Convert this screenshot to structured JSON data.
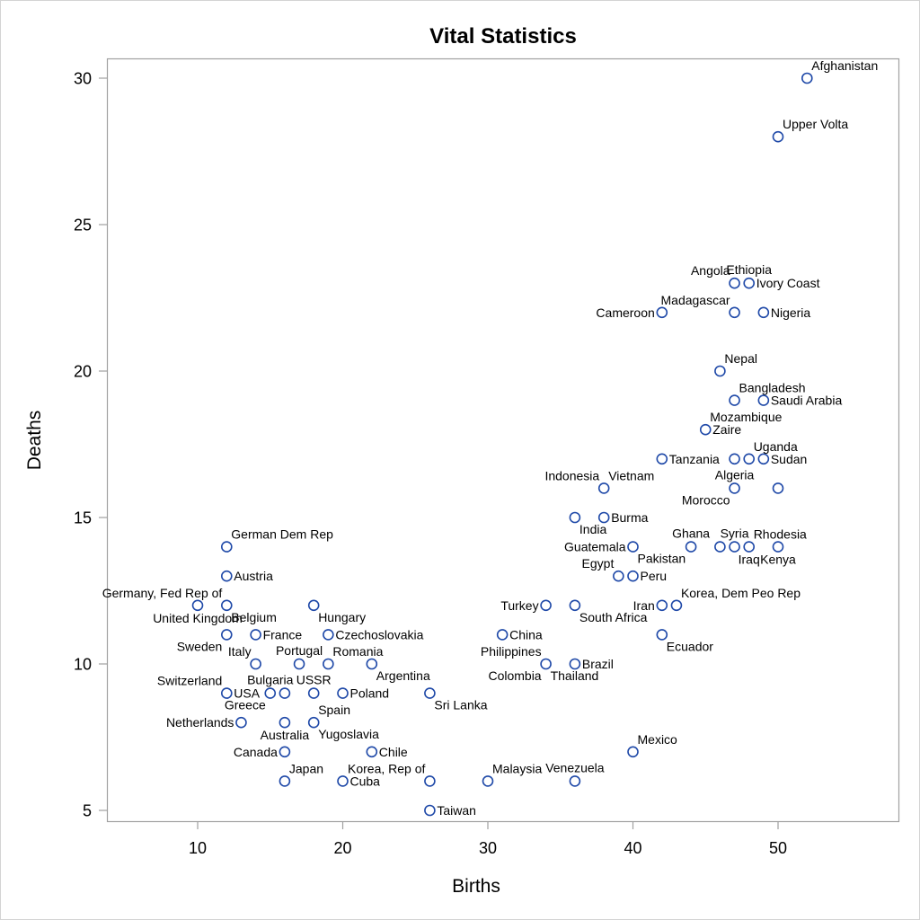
{
  "chart_data": {
    "type": "scatter",
    "title": "Vital Statistics",
    "xlabel": "Births",
    "ylabel": "Deaths",
    "xlim": [
      4.5,
      57
    ],
    "ylim": [
      4.6,
      31.6
    ],
    "xticks": [
      10,
      20,
      30,
      40,
      50
    ],
    "yticks": [
      5,
      10,
      15,
      20,
      25,
      30
    ],
    "grid": false,
    "legend": null,
    "marker": {
      "shape": "circle-open",
      "color": "#1f49a8"
    },
    "points": [
      {
        "label": "Afghanistan",
        "x": 52,
        "y": 30,
        "pos": "ne"
      },
      {
        "label": "Upper Volta",
        "x": 50,
        "y": 28,
        "pos": "ne"
      },
      {
        "label": "Angola",
        "x": 47,
        "y": 23,
        "pos": "nw"
      },
      {
        "label": "Ethiopia",
        "x": 48,
        "y": 23,
        "pos": "n"
      },
      {
        "label": "Ivory Coast",
        "x": 48,
        "y": 23,
        "pos": "e"
      },
      {
        "label": "Cameroon",
        "x": 42,
        "y": 22,
        "pos": "w"
      },
      {
        "label": "Madagascar",
        "x": 47,
        "y": 22,
        "pos": "nw"
      },
      {
        "label": "Nigeria",
        "x": 49,
        "y": 22,
        "pos": "e"
      },
      {
        "label": "Nepal",
        "x": 46,
        "y": 20,
        "pos": "ne"
      },
      {
        "label": "Bangladesh",
        "x": 47,
        "y": 19,
        "pos": "ne"
      },
      {
        "label": "Saudi Arabia",
        "x": 49,
        "y": 19,
        "pos": "e"
      },
      {
        "label": "Mozambique",
        "x": 45,
        "y": 18,
        "pos": "ne"
      },
      {
        "label": "Zaire",
        "x": 45,
        "y": 18,
        "pos": "e"
      },
      {
        "label": "Tanzania",
        "x": 42,
        "y": 17,
        "pos": "e"
      },
      {
        "label": "Uganda",
        "x": 48,
        "y": 17,
        "pos": "ne"
      },
      {
        "label": "Sudan",
        "x": 49,
        "y": 17,
        "pos": "e"
      },
      {
        "label": "",
        "x": 47,
        "y": 17,
        "pos": "none"
      },
      {
        "label": "Indonesia",
        "x": 38,
        "y": 16,
        "pos": "nw"
      },
      {
        "label": "Vietnam",
        "x": 38,
        "y": 16,
        "pos": "ne"
      },
      {
        "label": "Algeria",
        "x": 47,
        "y": 16,
        "pos": "n"
      },
      {
        "label": "Morocco",
        "x": 47,
        "y": 16,
        "pos": "sw"
      },
      {
        "label": "",
        "x": 50,
        "y": 16,
        "pos": "none"
      },
      {
        "label": "India",
        "x": 36,
        "y": 15,
        "pos": "se"
      },
      {
        "label": "Burma",
        "x": 38,
        "y": 15,
        "pos": "e"
      },
      {
        "label": "Guatemala",
        "x": 40,
        "y": 14,
        "pos": "w"
      },
      {
        "label": "Pakistan",
        "x": 40,
        "y": 14,
        "pos": "se"
      },
      {
        "label": "Ghana",
        "x": 44,
        "y": 14,
        "pos": "n"
      },
      {
        "label": "Syria",
        "x": 47,
        "y": 14,
        "pos": "n"
      },
      {
        "label": "",
        "x": 46,
        "y": 14,
        "pos": "none"
      },
      {
        "label": "Iraq",
        "x": 48,
        "y": 14,
        "pos": "s"
      },
      {
        "label": "Rhodesia",
        "x": 48,
        "y": 14,
        "pos": "ne"
      },
      {
        "label": "Kenya",
        "x": 50,
        "y": 14,
        "pos": "s"
      },
      {
        "label": "Egypt",
        "x": 39,
        "y": 13,
        "pos": "nw"
      },
      {
        "label": "Peru",
        "x": 40,
        "y": 13,
        "pos": "e"
      },
      {
        "label": "Turkey",
        "x": 34,
        "y": 12,
        "pos": "w"
      },
      {
        "label": "South Africa",
        "x": 36,
        "y": 12,
        "pos": "se"
      },
      {
        "label": "Iran",
        "x": 42,
        "y": 12,
        "pos": "w"
      },
      {
        "label": "Korea, Dem Peo Rep",
        "x": 43,
        "y": 12,
        "pos": "ne"
      },
      {
        "label": "China",
        "x": 31,
        "y": 11,
        "pos": "e"
      },
      {
        "label": "Ecuador",
        "x": 42,
        "y": 11,
        "pos": "se"
      },
      {
        "label": "Philippines",
        "x": 34,
        "y": 10,
        "pos": "nw"
      },
      {
        "label": "Colombia",
        "x": 34,
        "y": 10,
        "pos": "sw"
      },
      {
        "label": "Thailand",
        "x": 34,
        "y": 10,
        "pos": "se"
      },
      {
        "label": "Brazil",
        "x": 36,
        "y": 10,
        "pos": "e"
      },
      {
        "label": "German Dem Rep",
        "x": 12,
        "y": 14,
        "pos": "ne"
      },
      {
        "label": "Austria",
        "x": 12,
        "y": 13,
        "pos": "e"
      },
      {
        "label": "Germany, Fed Rep of",
        "x": 12,
        "y": 12,
        "pos": "nw"
      },
      {
        "label": "United Kingdom",
        "x": 10,
        "y": 12,
        "pos": "s"
      },
      {
        "label": "Belgium",
        "x": 12,
        "y": 12,
        "pos": "se"
      },
      {
        "label": "Hungary",
        "x": 18,
        "y": 12,
        "pos": "se"
      },
      {
        "label": "Sweden",
        "x": 12,
        "y": 11,
        "pos": "sw"
      },
      {
        "label": "France",
        "x": 14,
        "y": 11,
        "pos": "e"
      },
      {
        "label": "Czechoslovakia",
        "x": 19,
        "y": 11,
        "pos": "e"
      },
      {
        "label": "Italy",
        "x": 14,
        "y": 10,
        "pos": "nw"
      },
      {
        "label": "Portugal",
        "x": 17,
        "y": 10,
        "pos": "n"
      },
      {
        "label": "Romania",
        "x": 19,
        "y": 10,
        "pos": "ne"
      },
      {
        "label": "Argentina",
        "x": 22,
        "y": 10,
        "pos": "se"
      },
      {
        "label": "Switzerland",
        "x": 12,
        "y": 9,
        "pos": "nw"
      },
      {
        "label": "USA",
        "x": 12,
        "y": 9,
        "pos": "e"
      },
      {
        "label": "Bulgaria",
        "x": 15,
        "y": 9,
        "pos": "n"
      },
      {
        "label": "Greece",
        "x": 15,
        "y": 9,
        "pos": "sw"
      },
      {
        "label": "",
        "x": 16,
        "y": 9,
        "pos": "none"
      },
      {
        "label": "USSR",
        "x": 18,
        "y": 9,
        "pos": "n"
      },
      {
        "label": "Poland",
        "x": 20,
        "y": 9,
        "pos": "e"
      },
      {
        "label": "Sri Lanka",
        "x": 26,
        "y": 9,
        "pos": "se"
      },
      {
        "label": "Netherlands",
        "x": 13,
        "y": 8,
        "pos": "w"
      },
      {
        "label": "Australia",
        "x": 16,
        "y": 8,
        "pos": "s"
      },
      {
        "label": "Spain",
        "x": 18,
        "y": 8,
        "pos": "ne"
      },
      {
        "label": "Yugoslavia",
        "x": 18,
        "y": 8,
        "pos": "se"
      },
      {
        "label": "Canada",
        "x": 16,
        "y": 7,
        "pos": "w"
      },
      {
        "label": "Chile",
        "x": 22,
        "y": 7,
        "pos": "e"
      },
      {
        "label": "Mexico",
        "x": 40,
        "y": 7,
        "pos": "ne"
      },
      {
        "label": "Japan",
        "x": 16,
        "y": 6,
        "pos": "ne"
      },
      {
        "label": "Cuba",
        "x": 20,
        "y": 6,
        "pos": "e"
      },
      {
        "label": "Korea, Rep of",
        "x": 26,
        "y": 6,
        "pos": "nw"
      },
      {
        "label": "Malaysia",
        "x": 30,
        "y": 6,
        "pos": "ne"
      },
      {
        "label": "Venezuela",
        "x": 36,
        "y": 6,
        "pos": "n"
      },
      {
        "label": "Taiwan",
        "x": 26,
        "y": 5,
        "pos": "e"
      }
    ]
  }
}
